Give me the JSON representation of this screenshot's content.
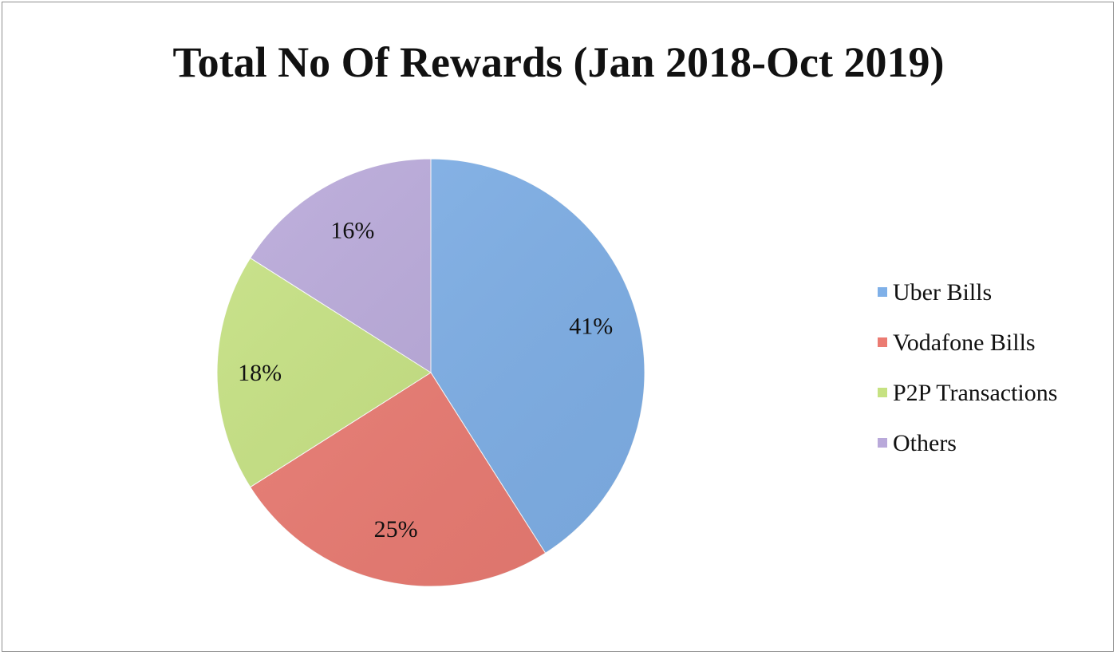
{
  "chart_data": {
    "type": "pie",
    "title": "Total No Of Rewards (Jan 2018-Oct 2019)",
    "categories": [
      "Uber Bills",
      "Vodafone Bills",
      "P2P Transactions",
      "Others"
    ],
    "values": [
      41,
      25,
      18,
      16
    ],
    "labels": [
      "41%",
      "25%",
      "18%",
      "16%"
    ],
    "colors": [
      "#7fb0e8",
      "#eb7b72",
      "#c6e282",
      "#b9a9da"
    ],
    "legend_position": "right",
    "start_angle": "12 o'clock",
    "direction": "clockwise"
  }
}
